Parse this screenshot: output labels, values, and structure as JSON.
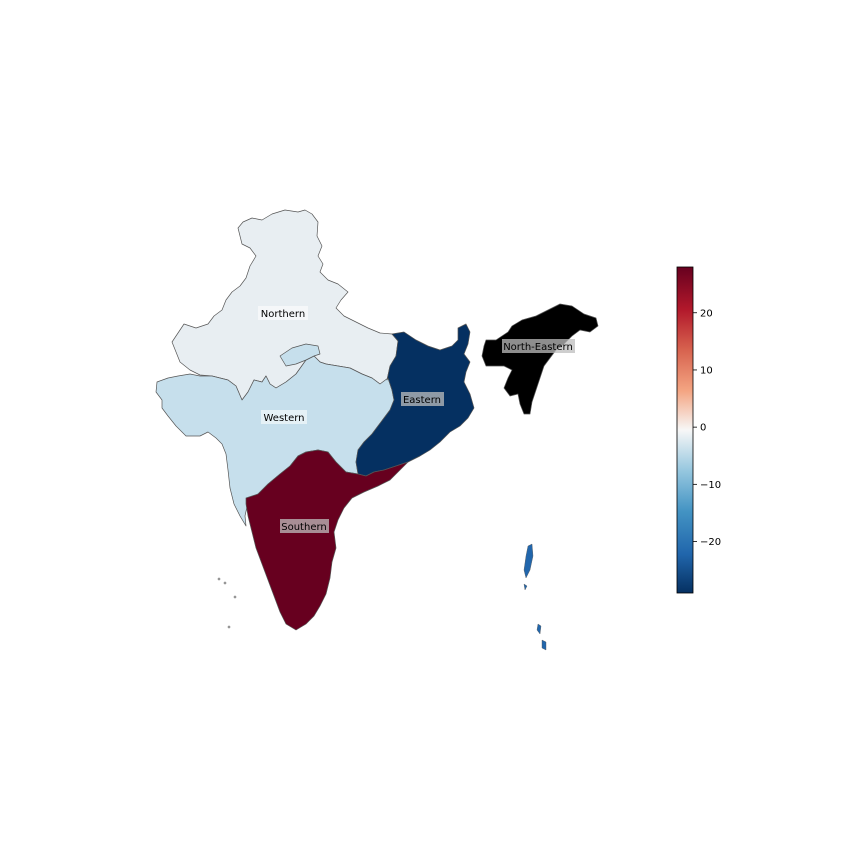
{
  "regions": [
    {
      "name": "Northern",
      "value": -2,
      "color": "#e8eef2"
    },
    {
      "name": "Western",
      "value": -9,
      "color": "#c6dfec"
    },
    {
      "name": "Eastern",
      "value": -29,
      "color": "#053061"
    },
    {
      "name": "Southern",
      "value": 28,
      "color": "#67001f"
    },
    {
      "name": "North-Eastern",
      "value": null,
      "color": "#000000"
    }
  ],
  "colorbar": {
    "colormap": "RdBu_r",
    "ticks": [
      "20",
      "10",
      "0",
      "−10",
      "−20"
    ],
    "tick_values": [
      20,
      10,
      0,
      -10,
      -20
    ],
    "min": -29,
    "max": 28
  },
  "chart_data": {
    "type": "choropleth",
    "categories": [
      "Northern",
      "Western",
      "Eastern",
      "Southern",
      "North-Eastern"
    ],
    "values": [
      -2,
      -9,
      -29,
      28,
      null
    ],
    "missing_value_color": "#000000",
    "colormap": "RdBu_r",
    "vmin": -29,
    "vmax": 28
  }
}
